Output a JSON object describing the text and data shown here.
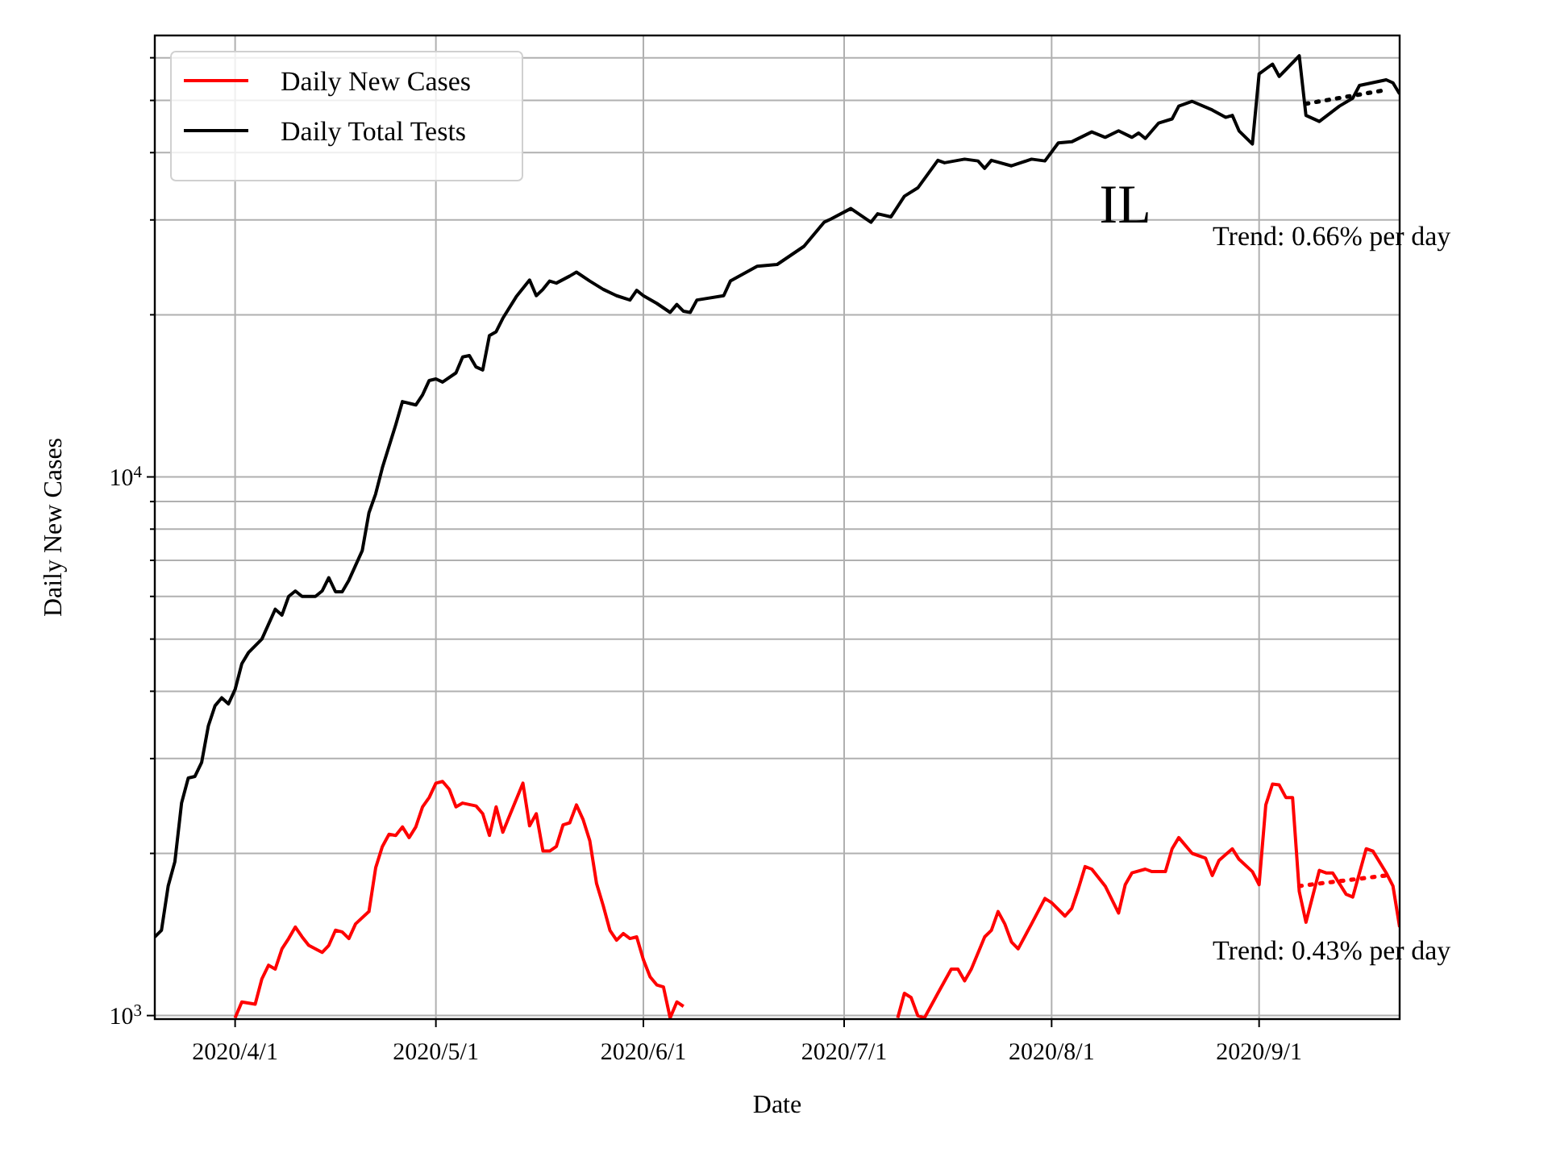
{
  "chart_data": {
    "type": "line",
    "title": "IL",
    "xlabel": "Date",
    "ylabel": "Daily New Cases",
    "log": true,
    "grid": true,
    "legend": "top left",
    "xlim": [
      "2020-03-20",
      "2020-09-22"
    ],
    "xticks": [
      {
        "value": "2020-04-01",
        "label": "2020/4/1"
      },
      {
        "value": "2020-05-01",
        "label": "2020/5/1"
      },
      {
        "value": "2020-06-01",
        "label": "2020/6/1"
      },
      {
        "value": "2020-07-01",
        "label": "2020/7/1"
      },
      {
        "value": "2020-08-01",
        "label": "2020/8/1"
      },
      {
        "value": "2020-09-01",
        "label": "2020/9/1"
      }
    ],
    "ylim": [
      985,
      66000
    ],
    "yticks": [
      {
        "value": 1000,
        "label": "10$^{3}$"
      },
      {
        "value": 2000,
        "label": null
      },
      {
        "value": 3000,
        "label": null
      },
      {
        "value": 4000,
        "label": null
      },
      {
        "value": 5000,
        "label": null
      },
      {
        "value": 6000,
        "label": null
      },
      {
        "value": 7000,
        "label": null
      },
      {
        "value": 8000,
        "label": null
      },
      {
        "value": 9000,
        "label": null
      },
      {
        "value": 10000,
        "label": "10$^{4}$"
      },
      {
        "value": 20000,
        "label": null
      },
      {
        "value": 30000,
        "label": null
      },
      {
        "value": 40000,
        "label": null
      },
      {
        "value": 50000,
        "label": null
      },
      {
        "value": 60000,
        "label": null
      }
    ],
    "annotations": [
      "Trend: 0.66% per day",
      "Trend: 0.43% per day"
    ],
    "series": [
      {
        "color": "#000000",
        "line_style": "dotted",
        "x": [
          "2020-09-08",
          "2020-09-20"
        ],
        "values": [
          49300,
          52300
        ]
      },
      {
        "color": "#ff0000",
        "line_style": "dotted",
        "x": [
          "2020-09-07",
          "2020-09-20"
        ],
        "values": [
          1740,
          1820
        ]
      },
      {
        "name": "Daily New Cases",
        "color": "#ff0000",
        "x": [
          "2020-04-01",
          "2020-04-02",
          "2020-04-04",
          "2020-04-05",
          "2020-04-06",
          "2020-04-07",
          "2020-04-08",
          "2020-04-09",
          "2020-04-10",
          "2020-04-11",
          "2020-04-12",
          "2020-04-14",
          "2020-04-15",
          "2020-04-16",
          "2020-04-17",
          "2020-04-18",
          "2020-04-19",
          "2020-04-21",
          "2020-04-22",
          "2020-04-23",
          "2020-04-24",
          "2020-04-25",
          "2020-04-26",
          "2020-04-27",
          "2020-04-28",
          "2020-04-29",
          "2020-04-30",
          "2020-05-01",
          "2020-05-02",
          "2020-05-03",
          "2020-05-04",
          "2020-05-05",
          "2020-05-07",
          "2020-05-08",
          "2020-05-09",
          "2020-05-10",
          "2020-05-11",
          "2020-05-14",
          "2020-05-15",
          "2020-05-16",
          "2020-05-17",
          "2020-05-18",
          "2020-05-19",
          "2020-05-20",
          "2020-05-21",
          "2020-05-22",
          "2020-05-23",
          "2020-05-24",
          "2020-05-25",
          "2020-05-26",
          "2020-05-27",
          "2020-05-28",
          "2020-05-29",
          "2020-05-30",
          "2020-05-31",
          "2020-06-01",
          "2020-06-02",
          "2020-06-03",
          "2020-06-04",
          "2020-06-05",
          "2020-06-06",
          "2020-06-07",
          "2020-06-08",
          "2020-07-08",
          "2020-07-09",
          "2020-07-10",
          "2020-07-11",
          "2020-07-12",
          "2020-07-13",
          "2020-07-15",
          "2020-07-17",
          "2020-07-18",
          "2020-07-19",
          "2020-07-20",
          "2020-07-22",
          "2020-07-23",
          "2020-07-24",
          "2020-07-25",
          "2020-07-26",
          "2020-07-27",
          "2020-07-29",
          "2020-07-31",
          "2020-08-01",
          "2020-08-03",
          "2020-08-04",
          "2020-08-05",
          "2020-08-06",
          "2020-08-07",
          "2020-08-09",
          "2020-08-11",
          "2020-08-12",
          "2020-08-13",
          "2020-08-15",
          "2020-08-16",
          "2020-08-18",
          "2020-08-19",
          "2020-08-20",
          "2020-08-22",
          "2020-08-24",
          "2020-08-25",
          "2020-08-26",
          "2020-08-28",
          "2020-08-29",
          "2020-08-31",
          "2020-09-01",
          "2020-09-02",
          "2020-09-03",
          "2020-09-04",
          "2020-09-05",
          "2020-09-06",
          "2020-09-07",
          "2020-09-08",
          "2020-09-10",
          "2020-09-11",
          "2020-09-12",
          "2020-09-14",
          "2020-09-15",
          "2020-09-17",
          "2020-09-18",
          "2020-09-20",
          "2020-09-21",
          "2020-09-22"
        ],
        "values": [
          990,
          1060,
          1050,
          1170,
          1240,
          1220,
          1330,
          1390,
          1460,
          1400,
          1350,
          1310,
          1350,
          1440,
          1430,
          1390,
          1480,
          1560,
          1880,
          2060,
          2170,
          2160,
          2240,
          2140,
          2240,
          2440,
          2540,
          2700,
          2720,
          2630,
          2440,
          2480,
          2450,
          2370,
          2160,
          2440,
          2190,
          2700,
          2250,
          2370,
          2020,
          2020,
          2060,
          2260,
          2280,
          2460,
          2310,
          2110,
          1760,
          1600,
          1440,
          1380,
          1420,
          1390,
          1400,
          1270,
          1180,
          1140,
          1130,
          990,
          1060,
          1040,
          null,
          null,
          990,
          1100,
          1080,
          1000,
          990,
          1100,
          1220,
          1220,
          1160,
          1220,
          1400,
          1440,
          1560,
          1480,
          1370,
          1330,
          1480,
          1650,
          1620,
          1530,
          1580,
          1720,
          1890,
          1870,
          1740,
          1550,
          1750,
          1840,
          1870,
          1850,
          1850,
          2040,
          2140,
          2000,
          1960,
          1820,
          1940,
          2040,
          1950,
          1850,
          1750,
          2460,
          2690,
          2680,
          2540,
          2540,
          1700,
          1490,
          1860,
          1840,
          1840,
          1680,
          1660,
          2040,
          2020,
          1840,
          1740,
          1460
        ]
      },
      {
        "name": "Daily Total Tests",
        "color": "#000000",
        "x": [
          "2020-03-20",
          "2020-03-21",
          "2020-03-22",
          "2020-03-23",
          "2020-03-24",
          "2020-03-25",
          "2020-03-26",
          "2020-03-27",
          "2020-03-28",
          "2020-03-29",
          "2020-03-30",
          "2020-03-31",
          "2020-04-01",
          "2020-04-02",
          "2020-04-03",
          "2020-04-05",
          "2020-04-07",
          "2020-04-08",
          "2020-04-09",
          "2020-04-10",
          "2020-04-11",
          "2020-04-13",
          "2020-04-14",
          "2020-04-15",
          "2020-04-16",
          "2020-04-17",
          "2020-04-18",
          "2020-04-20",
          "2020-04-21",
          "2020-04-22",
          "2020-04-23",
          "2020-04-25",
          "2020-04-26",
          "2020-04-28",
          "2020-04-29",
          "2020-04-30",
          "2020-05-01",
          "2020-05-02",
          "2020-05-04",
          "2020-05-05",
          "2020-05-06",
          "2020-05-07",
          "2020-05-08",
          "2020-05-09",
          "2020-05-10",
          "2020-05-11",
          "2020-05-13",
          "2020-05-15",
          "2020-05-16",
          "2020-05-17",
          "2020-05-18",
          "2020-05-19",
          "2020-05-21",
          "2020-05-22",
          "2020-05-24",
          "2020-05-26",
          "2020-05-28",
          "2020-05-30",
          "2020-05-31",
          "2020-06-01",
          "2020-06-03",
          "2020-06-05",
          "2020-06-06",
          "2020-06-07",
          "2020-06-08",
          "2020-06-09",
          "2020-06-13",
          "2020-06-14",
          "2020-06-18",
          "2020-06-21",
          "2020-06-25",
          "2020-06-28",
          "2020-06-29",
          "2020-07-02",
          "2020-07-05",
          "2020-07-06",
          "2020-07-08",
          "2020-07-10",
          "2020-07-12",
          "2020-07-15",
          "2020-07-16",
          "2020-07-19",
          "2020-07-21",
          "2020-07-22",
          "2020-07-23",
          "2020-07-26",
          "2020-07-29",
          "2020-07-31",
          "2020-08-02",
          "2020-08-04",
          "2020-08-07",
          "2020-08-09",
          "2020-08-11",
          "2020-08-13",
          "2020-08-14",
          "2020-08-15",
          "2020-08-17",
          "2020-08-19",
          "2020-08-20",
          "2020-08-22",
          "2020-08-25",
          "2020-08-27",
          "2020-08-28",
          "2020-08-29",
          "2020-08-31",
          "2020-09-01",
          "2020-09-03",
          "2020-09-04",
          "2020-09-07",
          "2020-09-08",
          "2020-09-10",
          "2020-09-13",
          "2020-09-15",
          "2020-09-16",
          "2020-09-20",
          "2020-09-21",
          "2020-09-22"
        ],
        "values": [
          1400,
          1440,
          1740,
          1930,
          2480,
          2760,
          2780,
          2950,
          3450,
          3760,
          3890,
          3790,
          4030,
          4500,
          4720,
          5000,
          5680,
          5540,
          6000,
          6140,
          6000,
          6000,
          6140,
          6500,
          6120,
          6120,
          6430,
          7300,
          8580,
          9300,
          10400,
          12500,
          13800,
          13600,
          14200,
          15100,
          15200,
          15000,
          15600,
          16700,
          16800,
          16000,
          15800,
          18300,
          18600,
          19700,
          21600,
          23200,
          21700,
          22300,
          23100,
          22900,
          23600,
          24000,
          23100,
          22300,
          21700,
          21300,
          22200,
          21700,
          21000,
          20200,
          20900,
          20300,
          20200,
          21300,
          21700,
          23100,
          24600,
          24800,
          26800,
          29700,
          30100,
          31500,
          29700,
          30800,
          30400,
          33200,
          34400,
          38700,
          38300,
          38900,
          38600,
          37400,
          38700,
          37800,
          38900,
          38600,
          41700,
          41900,
          43700,
          42700,
          43900,
          42700,
          43500,
          42500,
          45400,
          46200,
          48800,
          49800,
          48000,
          46500,
          46900,
          43900,
          41500,
          56000,
          58400,
          55400,
          60500,
          46900,
          45700,
          48800,
          50500,
          53300,
          54600,
          53900,
          51400
        ]
      }
    ]
  }
}
